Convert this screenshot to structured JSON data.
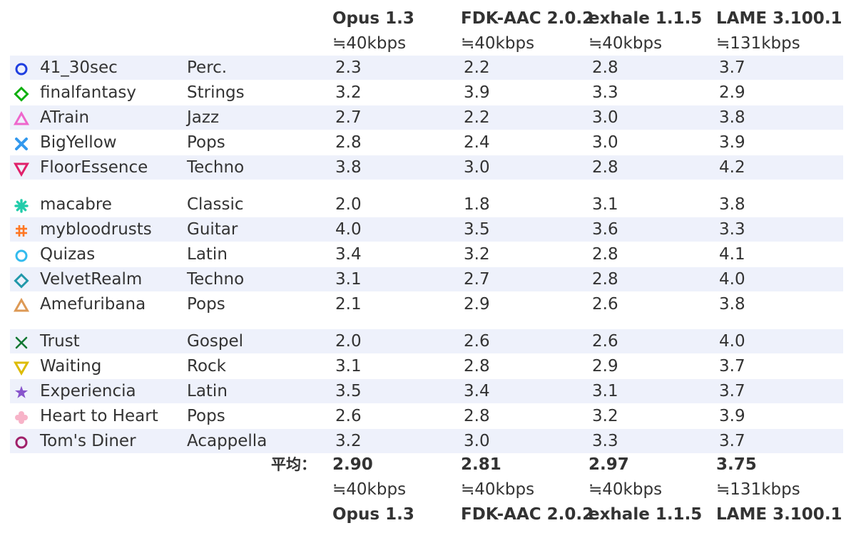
{
  "chart_data": {
    "type": "table",
    "columns": [
      {
        "name": "Opus 1.3",
        "bitrate": "≒40kbps"
      },
      {
        "name": "FDK-AAC 2.0.2",
        "bitrate": "≒40kbps"
      },
      {
        "name": "exhale 1.1.5",
        "bitrate": "≒40kbps"
      },
      {
        "name": "LAME 3.100.1",
        "bitrate": "≒131kbps"
      }
    ],
    "rows": [
      {
        "name": "41_30sec",
        "genre": "Perc.",
        "marker": "circle-open",
        "color": "#1f3fe0",
        "values": [
          "2.3",
          "2.2",
          "2.8",
          "3.7"
        ]
      },
      {
        "name": "finalfantasy",
        "genre": "Strings",
        "marker": "diamond-open",
        "color": "#11b011",
        "values": [
          "3.2",
          "3.9",
          "3.3",
          "2.9"
        ]
      },
      {
        "name": "ATrain",
        "genre": "Jazz",
        "marker": "triangle-up-open",
        "color": "#ee66cc",
        "values": [
          "2.7",
          "2.2",
          "3.0",
          "3.8"
        ]
      },
      {
        "name": "BigYellow",
        "genre": "Pops",
        "marker": "x-thick",
        "color": "#3399ee",
        "values": [
          "2.8",
          "2.4",
          "3.0",
          "3.9"
        ]
      },
      {
        "name": "FloorEssence",
        "genre": "Techno",
        "marker": "triangle-down-open",
        "color": "#e0206a",
        "values": [
          "3.8",
          "3.0",
          "2.8",
          "4.2"
        ]
      },
      {
        "name": "macabre",
        "genre": "Classic",
        "marker": "asterisk",
        "color": "#22ccaa",
        "values": [
          "2.0",
          "1.8",
          "3.1",
          "3.8"
        ]
      },
      {
        "name": "mybloodrusts",
        "genre": "Guitar",
        "marker": "hash",
        "color": "#ff7722",
        "values": [
          "4.0",
          "3.5",
          "3.6",
          "3.3"
        ]
      },
      {
        "name": "Quizas",
        "genre": "Latin",
        "marker": "circle-open",
        "color": "#33bbee",
        "values": [
          "3.4",
          "3.2",
          "2.8",
          "4.1"
        ]
      },
      {
        "name": "VelvetRealm",
        "genre": "Techno",
        "marker": "diamond-open",
        "color": "#2299aa",
        "values": [
          "3.1",
          "2.7",
          "2.8",
          "4.0"
        ]
      },
      {
        "name": "Amefuribana",
        "genre": "Pops",
        "marker": "triangle-up-open",
        "color": "#dd9955",
        "values": [
          "2.1",
          "2.9",
          "2.6",
          "3.8"
        ]
      },
      {
        "name": "Trust",
        "genre": "Gospel",
        "marker": "x-thin",
        "color": "#117733",
        "values": [
          "2.0",
          "2.6",
          "2.6",
          "4.0"
        ]
      },
      {
        "name": "Waiting",
        "genre": "Rock",
        "marker": "triangle-down-open",
        "color": "#ddbb00",
        "values": [
          "3.1",
          "2.8",
          "2.9",
          "3.7"
        ]
      },
      {
        "name": "Experiencia",
        "genre": "Latin",
        "marker": "star",
        "color": "#8855cc",
        "values": [
          "3.5",
          "3.4",
          "3.1",
          "3.7"
        ]
      },
      {
        "name": "Heart to Heart",
        "genre": "Pops",
        "marker": "cross-blob",
        "color": "#f7b3c8",
        "values": [
          "2.6",
          "2.8",
          "3.2",
          "3.9"
        ]
      },
      {
        "name": "Tom's Diner",
        "genre": "Acappella",
        "marker": "circle-open",
        "color": "#a0206a",
        "values": [
          "3.2",
          "3.0",
          "3.3",
          "3.7"
        ]
      }
    ],
    "groups": [
      5,
      5,
      5
    ],
    "average_label": "平均：",
    "averages": [
      "2.90",
      "2.81",
      "2.97",
      "3.75"
    ]
  }
}
